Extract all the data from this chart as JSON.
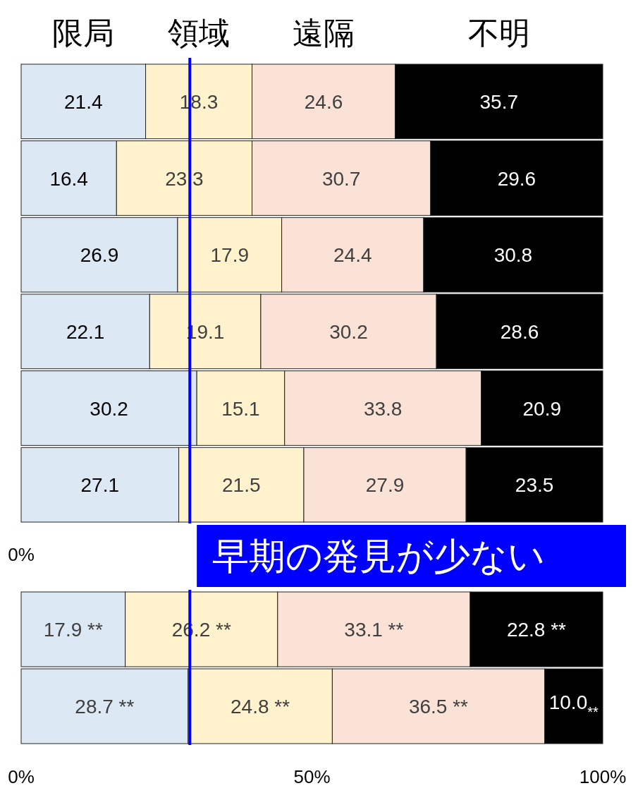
{
  "chart_data": [
    {
      "type": "bar",
      "orientation": "horizontal",
      "stacked": true,
      "categories": [
        null,
        null,
        null,
        null,
        null,
        null
      ],
      "series": [
        {
          "name": "限局",
          "color": "#dde8f5",
          "values": [
            21.4,
            16.4,
            26.9,
            22.1,
            30.2,
            27.1
          ]
        },
        {
          "name": "領域",
          "color": "#fff2cc",
          "values": [
            18.3,
            23.3,
            17.9,
            19.1,
            15.1,
            21.5
          ]
        },
        {
          "name": "遠隔",
          "color": "#fae3d6",
          "values": [
            24.6,
            30.7,
            24.4,
            30.2,
            33.8,
            27.9
          ]
        },
        {
          "name": "不明",
          "color": "#000000",
          "values": [
            35.7,
            29.6,
            30.8,
            28.6,
            20.9,
            23.5
          ]
        }
      ],
      "xlim": [
        0,
        100
      ],
      "data_labels": true,
      "legend": "top",
      "ref_lines": [
        {
          "axis": "x",
          "value": 29,
          "color": "#0000ff"
        }
      ],
      "annotations": [
        "0%",
        "早期の発見が少ない"
      ]
    },
    {
      "type": "bar",
      "orientation": "horizontal",
      "stacked": true,
      "categories": [
        null,
        null
      ],
      "series": [
        {
          "color": "#dde8f5",
          "values": [
            17.9,
            28.7
          ],
          "value_labels": [
            "17.9 **",
            "28.7 **"
          ]
        },
        {
          "color": "#fff2cc",
          "values": [
            26.2,
            24.8
          ],
          "value_labels": [
            "26.2 **",
            "24.8 **"
          ]
        },
        {
          "color": "#fae3d6",
          "values": [
            33.1,
            36.5
          ],
          "value_labels": [
            "33.1 **",
            "36.5 **"
          ]
        },
        {
          "color": "#000000",
          "values": [
            22.8,
            10.0
          ],
          "value_labels": [
            "22.8 **",
            "10.0$_{**}$"
          ]
        }
      ],
      "xlim": [
        0,
        100
      ],
      "xticks": [
        {
          "value": 0,
          "label": "0%"
        },
        {
          "value": 50,
          "label": "50%"
        },
        {
          "value": 100,
          "label": "100%"
        }
      ],
      "ref_lines": [
        {
          "axis": "x",
          "value": 29,
          "color": "#0000ff"
        }
      ]
    }
  ]
}
